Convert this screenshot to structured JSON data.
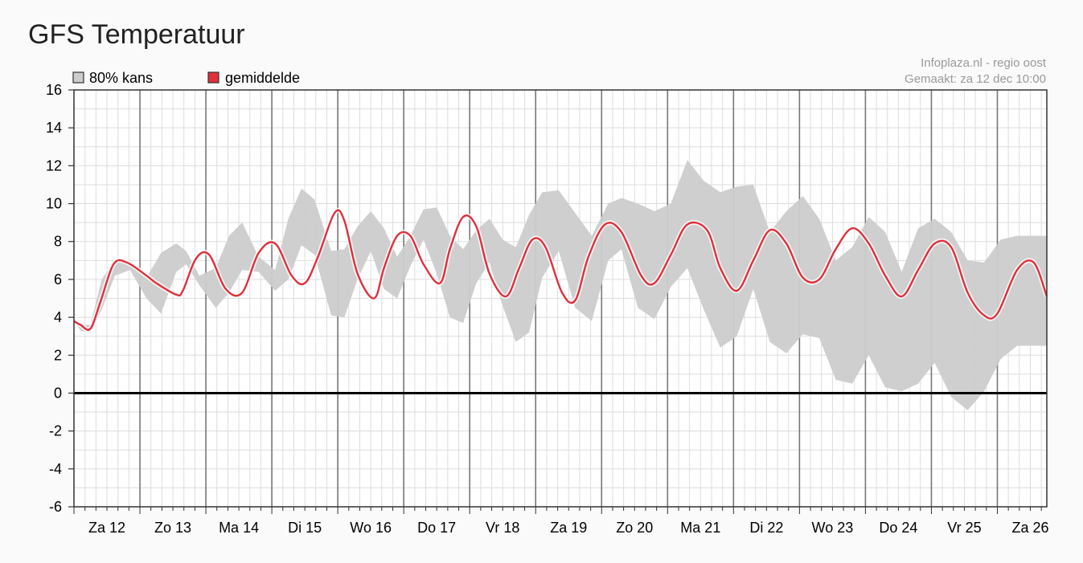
{
  "page": {
    "title": "GFS Temperatuur"
  },
  "credits": {
    "source": "Infoplaza.nl - regio oost",
    "created": "Gemaakt: za 12 dec 10:00"
  },
  "colors": {
    "band": "#cccccc",
    "mean_line": "#e0303c",
    "mean_halo": "#ffffff",
    "major_grid": "#777777",
    "minor_grid": "#dddddd",
    "zero_line": "#000000",
    "plot_bg": "#ffffff"
  },
  "chart_data": {
    "type": "area",
    "title": "GFS Temperatuur",
    "xlabel": "",
    "ylabel": "",
    "ylim": [
      -6,
      16
    ],
    "yticks": [
      16,
      14,
      12,
      10,
      8,
      6,
      4,
      2,
      0,
      -2,
      -4,
      -6
    ],
    "ytick_labels": [
      "16",
      "14",
      "12",
      "10",
      "8",
      "6",
      "4",
      "2",
      "0",
      "-2",
      "-4",
      "-6"
    ],
    "x_unit": "days since start of axis (Za 12 00:00)",
    "xlim": [
      0,
      14.75
    ],
    "day_labels": [
      "Za 12",
      "Zo 13",
      "Ma 14",
      "Di 15",
      "Wo 16",
      "Do 17",
      "Vr 18",
      "Za 19",
      "Zo 20",
      "Ma 21",
      "Di 22",
      "Wo 23",
      "Do 24",
      "Vr 25",
      "Za 26"
    ],
    "grid": true,
    "legend_position": "top-left",
    "series": [
      {
        "name": "80% kans",
        "kind": "band",
        "x": [
          0,
          0.1,
          0.25,
          0.42,
          0.62,
          0.85,
          1.1,
          1.32,
          1.55,
          1.7,
          1.9,
          2.15,
          2.35,
          2.55,
          2.8,
          3.05,
          3.25,
          3.45,
          3.65,
          3.9,
          4.1,
          4.3,
          4.5,
          4.7,
          4.9,
          5.1,
          5.3,
          5.5,
          5.7,
          5.9,
          6.1,
          6.3,
          6.5,
          6.7,
          6.9,
          7.1,
          7.35,
          7.6,
          7.85,
          8.1,
          8.3,
          8.55,
          8.8,
          9.05,
          9.3,
          9.55,
          9.8,
          10.05,
          10.3,
          10.55,
          10.8,
          11.05,
          11.3,
          11.55,
          11.8,
          12.05,
          12.3,
          12.55,
          12.8,
          13.05,
          13.3,
          13.55,
          13.8,
          14.05,
          14.3,
          14.55,
          14.75
        ],
        "upper": [
          3.8,
          3.6,
          3.6,
          6.0,
          7.0,
          6.8,
          6.1,
          7.4,
          7.9,
          7.5,
          6.2,
          6.6,
          8.3,
          9.0,
          7.2,
          6.5,
          9.2,
          10.8,
          10.2,
          7.5,
          7.6,
          8.8,
          9.6,
          8.7,
          7.2,
          8.3,
          9.7,
          9.8,
          8.3,
          7.6,
          8.6,
          9.2,
          8.1,
          7.7,
          9.4,
          10.6,
          10.7,
          9.5,
          8.3,
          10.0,
          10.3,
          10.0,
          9.6,
          10.0,
          12.3,
          11.2,
          10.6,
          10.9,
          11.0,
          8.5,
          9.6,
          10.4,
          9.2,
          7.0,
          7.7,
          9.3,
          8.5,
          6.4,
          8.7,
          9.2,
          8.5,
          7.0,
          6.9,
          8.1,
          8.3,
          8.3,
          8.3
        ],
        "lower": [
          3.8,
          3.3,
          3.2,
          4.4,
          6.2,
          6.5,
          5.0,
          4.2,
          6.4,
          6.8,
          5.7,
          4.5,
          5.3,
          6.5,
          6.4,
          5.4,
          6.0,
          7.8,
          7.3,
          4.1,
          4.0,
          6.0,
          7.5,
          5.5,
          5.0,
          6.7,
          8.1,
          6.3,
          4.0,
          3.7,
          5.8,
          6.9,
          4.6,
          2.7,
          3.2,
          6.1,
          7.5,
          4.5,
          3.8,
          7.0,
          7.6,
          4.5,
          3.9,
          5.6,
          6.6,
          4.4,
          2.4,
          3.0,
          5.5,
          2.7,
          2.1,
          3.1,
          2.9,
          0.7,
          0.5,
          2.0,
          0.3,
          0.1,
          0.5,
          1.6,
          -0.2,
          -0.9,
          0.1,
          1.8,
          2.5,
          2.5,
          2.5
        ]
      },
      {
        "name": "gemiddelde",
        "kind": "line",
        "x": [
          0,
          0.1,
          0.25,
          0.4,
          0.6,
          0.8,
          1.1,
          1.25,
          1.55,
          1.65,
          1.85,
          2.05,
          2.3,
          2.55,
          2.8,
          3.05,
          3.3,
          3.5,
          3.7,
          3.95,
          4.1,
          4.3,
          4.55,
          4.7,
          4.9,
          5.1,
          5.3,
          5.55,
          5.7,
          5.9,
          6.1,
          6.3,
          6.55,
          6.75,
          6.95,
          7.15,
          7.4,
          7.6,
          7.8,
          8.05,
          8.3,
          8.6,
          8.8,
          9.05,
          9.3,
          9.6,
          9.8,
          10.05,
          10.3,
          10.55,
          10.8,
          11.05,
          11.3,
          11.55,
          11.8,
          12.05,
          12.3,
          12.55,
          12.8,
          13.05,
          13.3,
          13.55,
          13.8,
          14.0,
          14.3,
          14.55,
          14.75
        ],
        "values": [
          3.8,
          3.6,
          3.4,
          4.8,
          6.8,
          6.9,
          6.2,
          5.8,
          5.2,
          5.4,
          7.1,
          7.3,
          5.5,
          5.3,
          7.4,
          7.9,
          6.2,
          5.8,
          7.2,
          9.5,
          9.1,
          6.3,
          5.0,
          6.6,
          8.3,
          8.3,
          6.8,
          5.8,
          7.6,
          9.3,
          8.8,
          6.3,
          5.1,
          6.6,
          8.1,
          7.7,
          5.3,
          4.9,
          7.2,
          8.9,
          8.5,
          6.2,
          5.8,
          7.3,
          8.9,
          8.6,
          6.6,
          5.4,
          7.0,
          8.6,
          7.9,
          6.1,
          6.0,
          7.6,
          8.7,
          7.9,
          6.2,
          5.1,
          6.5,
          7.9,
          7.7,
          5.3,
          4.1,
          4.2,
          6.5,
          6.9,
          5.1
        ]
      }
    ]
  }
}
